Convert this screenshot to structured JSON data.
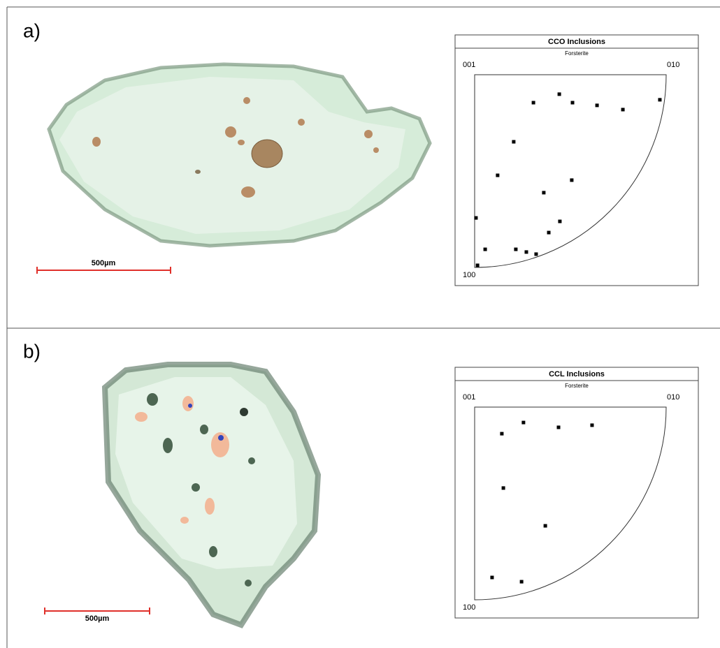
{
  "panels": [
    {
      "label": "a)",
      "scale_bar": "500µm"
    },
    {
      "label": "b)",
      "scale_bar": "500µm"
    }
  ],
  "chart_data": [
    {
      "type": "scatter",
      "title": "CCO Inclusions",
      "subtitle": "Forsterite",
      "corner_labels": {
        "top_left": "001",
        "top_right": "010",
        "bottom_left": "100"
      },
      "x": [
        0.307,
        0.442,
        0.511,
        0.639,
        0.774,
        0.967,
        0.204,
        0.12,
        0.507,
        0.361,
        0.007,
        0.445,
        0.387,
        0.055,
        0.215,
        0.27,
        0.321,
        0.015
      ],
      "y": [
        0.855,
        0.899,
        0.855,
        0.841,
        0.819,
        0.87,
        0.652,
        0.478,
        0.453,
        0.388,
        0.257,
        0.239,
        0.181,
        0.094,
        0.094,
        0.08,
        0.069,
        0.011
      ],
      "xlim": [
        0,
        1
      ],
      "ylim": [
        0,
        1
      ],
      "color": "#000000"
    },
    {
      "type": "scatter",
      "title": "CCL Inclusions",
      "subtitle": "Forsterite",
      "corner_labels": {
        "top_left": "001",
        "top_right": "010",
        "bottom_left": "100"
      },
      "x": [
        0.142,
        0.255,
        0.438,
        0.613,
        0.15,
        0.369,
        0.091,
        0.245
      ],
      "y": [
        0.862,
        0.92,
        0.895,
        0.906,
        0.58,
        0.384,
        0.116,
        0.094
      ],
      "xlim": [
        0,
        1
      ],
      "ylim": [
        0,
        1
      ],
      "color": "#000000"
    }
  ]
}
